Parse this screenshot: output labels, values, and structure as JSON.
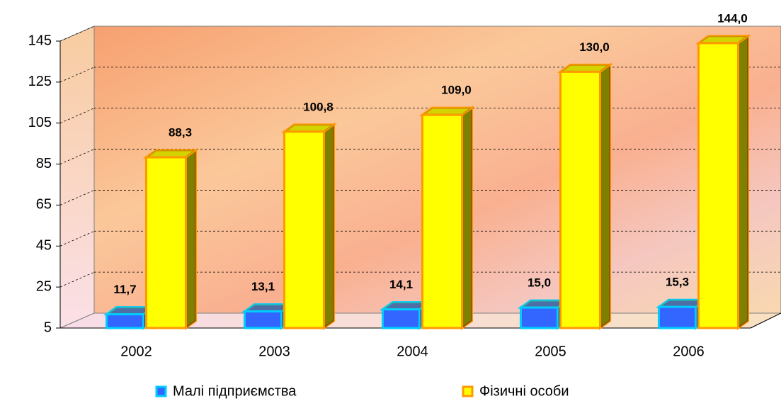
{
  "chart_data": {
    "type": "bar3d",
    "categories": [
      "2002",
      "2003",
      "2004",
      "2005",
      "2006"
    ],
    "series": [
      {
        "name": "Малі підприємства",
        "color": "#3366ff",
        "edge": "#00ccff",
        "values": [
          11.7,
          13.1,
          14.1,
          15.0,
          15.3
        ],
        "value_labels": [
          "11,7",
          "13,1",
          "14,1",
          "15,0",
          "15,3"
        ]
      },
      {
        "name": "Фізичні особи",
        "color": "#ffff00",
        "edge": "#ff9900",
        "values": [
          88.3,
          100.8,
          109.0,
          130.0,
          144.0
        ],
        "value_labels": [
          "88,3",
          "100,8",
          "109,0",
          "130,0",
          "144,0"
        ]
      }
    ],
    "ylim": [
      5,
      145
    ],
    "yticks": [
      5,
      25,
      45,
      65,
      85,
      105,
      125,
      145
    ],
    "grid": true
  }
}
